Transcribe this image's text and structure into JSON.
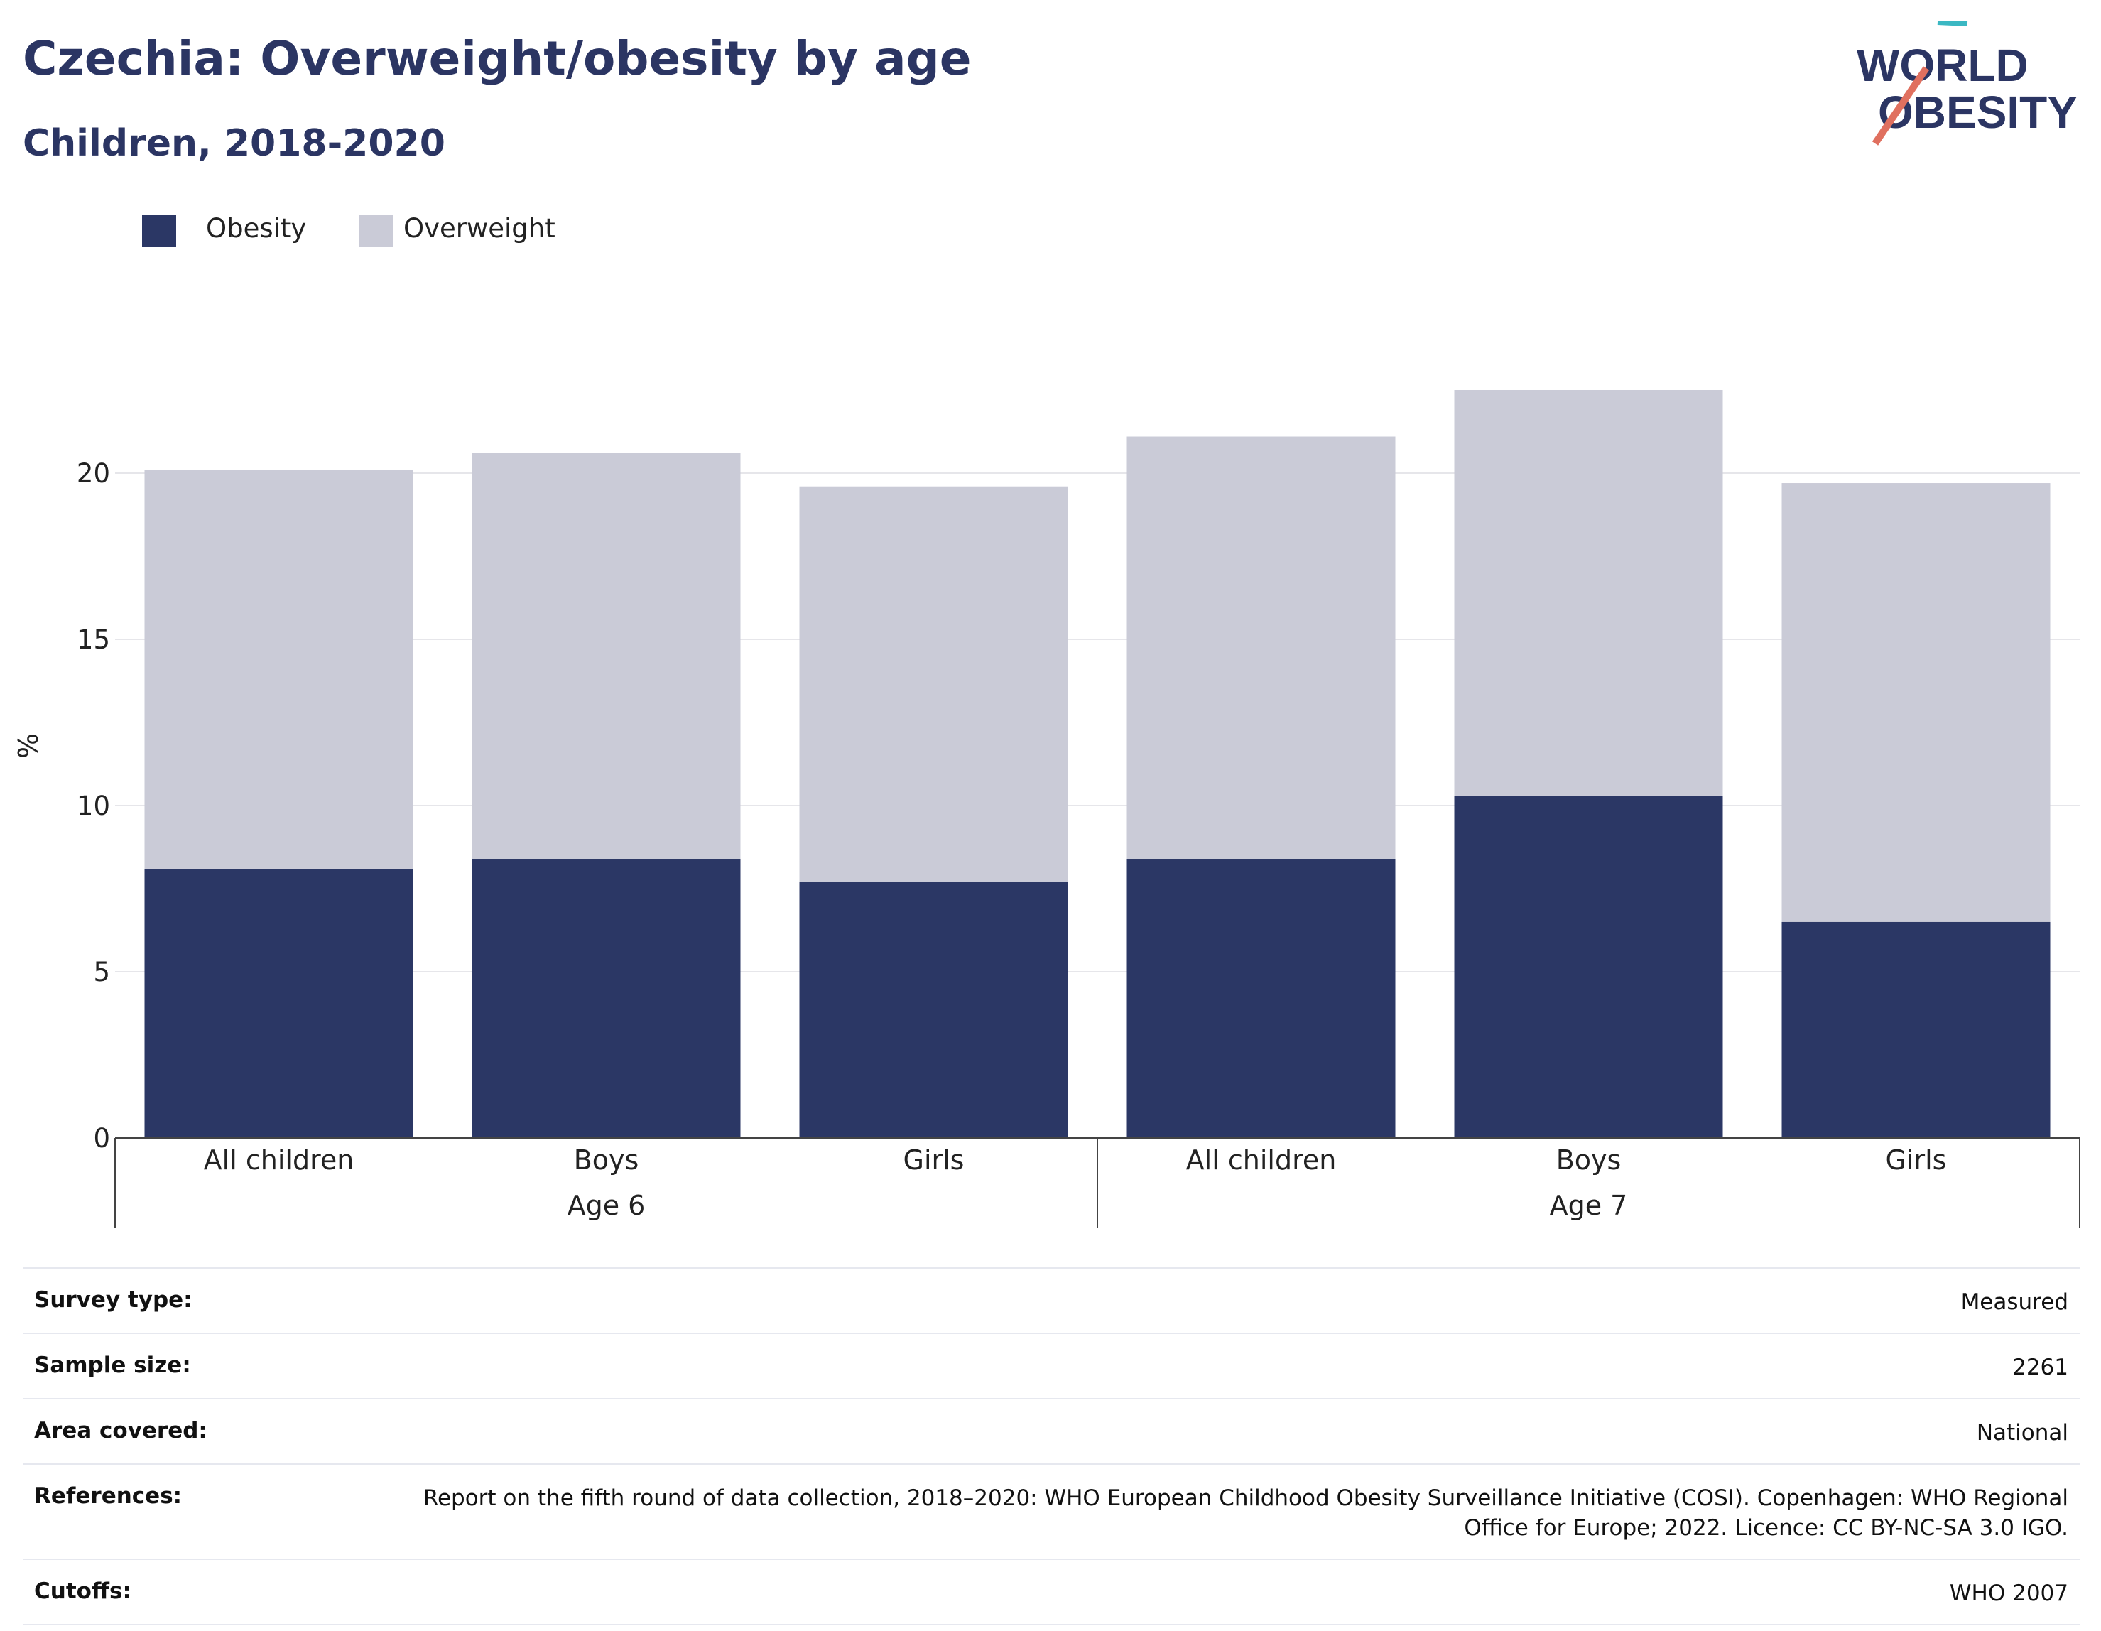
{
  "title": "Czechia: Overweight/obesity by age",
  "subtitle": "Children, 2018-2020",
  "logo": {
    "line1": "WORLD",
    "line2": "OBESITY"
  },
  "legend": [
    {
      "label": "Obesity",
      "color": "#2b3765"
    },
    {
      "label": "Overweight",
      "color": "#cacbd7"
    }
  ],
  "chart_data": {
    "type": "bar",
    "stacked": true,
    "ylabel": "%",
    "xlabel": "",
    "ylim": [
      0,
      25
    ],
    "yticks": [
      0,
      5,
      10,
      15,
      20
    ],
    "grid": true,
    "legend_position": "top-left",
    "groups": [
      {
        "label": "Age 6",
        "categories": [
          "All children",
          "Boys",
          "Girls"
        ]
      },
      {
        "label": "Age 7",
        "categories": [
          "All children",
          "Boys",
          "Girls"
        ]
      }
    ],
    "categories": [
      "All children",
      "Boys",
      "Girls",
      "All children",
      "Boys",
      "Girls"
    ],
    "series": [
      {
        "name": "Obesity",
        "color": "#2b3765",
        "values": [
          8.1,
          8.4,
          7.7,
          8.4,
          10.3,
          6.5
        ]
      },
      {
        "name": "Overweight",
        "color": "#cacbd7",
        "values": [
          12.0,
          12.2,
          11.9,
          12.7,
          12.2,
          13.2
        ]
      }
    ]
  },
  "info": [
    {
      "key": "Survey type:",
      "value": "Measured"
    },
    {
      "key": "Sample size:",
      "value": "2261"
    },
    {
      "key": "Area covered:",
      "value": "National"
    },
    {
      "key": "References:",
      "value": "Report on the fifth round of data collection, 2018–2020: WHO European Childhood Obesity Surveillance Initiative (COSI). Copenhagen: WHO Regional Office for Europe; 2022. Licence: CC BY-NC-SA 3.0 IGO."
    },
    {
      "key": "Cutoffs:",
      "value": "WHO 2007"
    }
  ]
}
